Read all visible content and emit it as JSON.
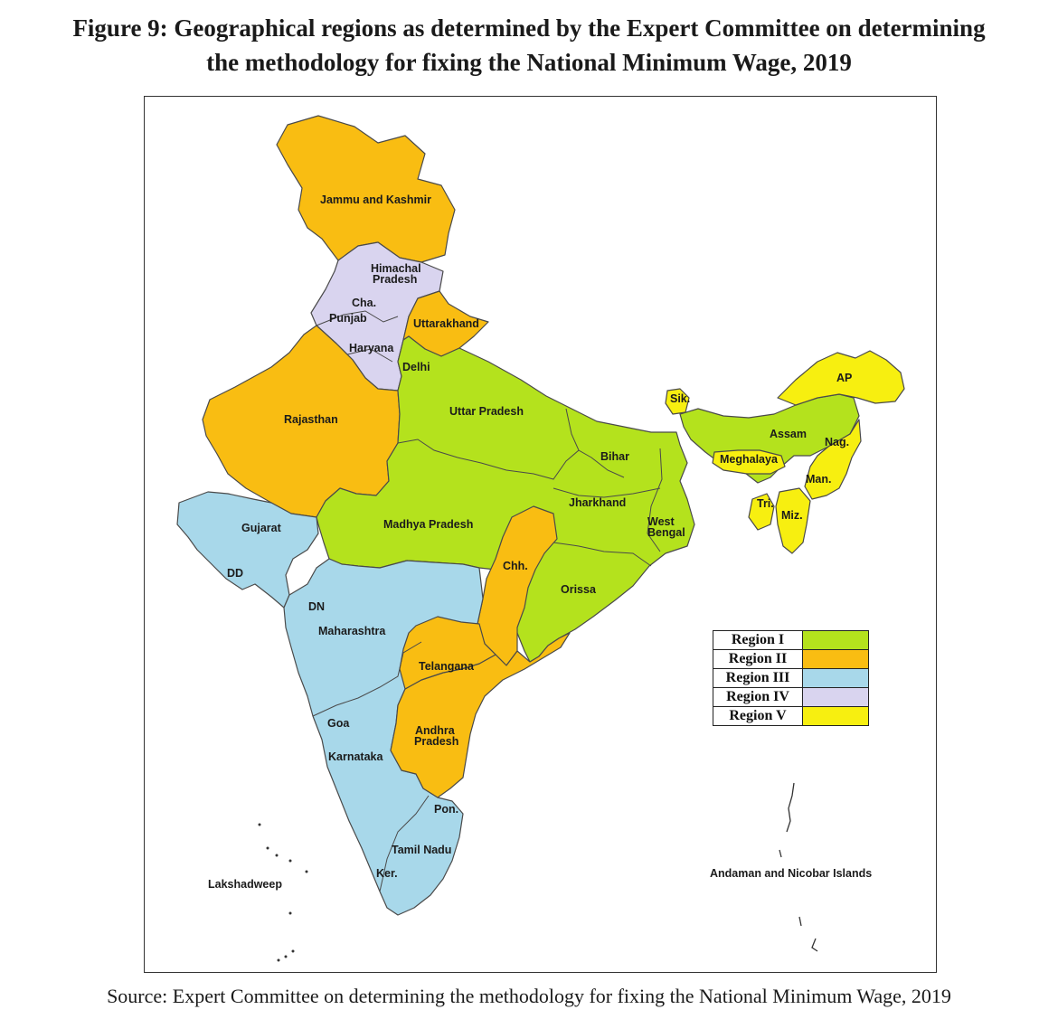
{
  "figure": {
    "title_line1": "Figure 9: Geographical regions as determined by the Expert Committee on determining",
    "title_line2": "the methodology for fixing the National Minimum Wage, 2019",
    "source": "Source: Expert Committee on determining the methodology for fixing the National Minimum Wage, 2019"
  },
  "colors": {
    "region_1": "#b4e21d",
    "region_2": "#f9bd12",
    "region_3": "#a8d8ea",
    "region_4": "#d9d4ef",
    "region_5": "#f7ef10",
    "border": "#4a4a4a"
  },
  "legend": [
    {
      "label": "Region I",
      "color": "#b4e21d"
    },
    {
      "label": "Region II",
      "color": "#f9bd12"
    },
    {
      "label": "Region III",
      "color": "#a8d8ea"
    },
    {
      "label": "Region IV",
      "color": "#d9d4ef"
    },
    {
      "label": "Region V",
      "color": "#f7ef10"
    }
  ],
  "states": {
    "jammu_kashmir": {
      "label": "Jammu and Kashmir",
      "region": "Region II"
    },
    "himachal": {
      "label_line1": "Himachal",
      "label_line2": "Pradesh",
      "region": "Region IV"
    },
    "chandigarh": {
      "label": "Cha.",
      "region": "Region IV"
    },
    "punjab": {
      "label": "Punjab",
      "region": "Region IV"
    },
    "uttarakhand": {
      "label": "Uttarakhand",
      "region": "Region II"
    },
    "haryana": {
      "label": "Haryana",
      "region": "Region IV"
    },
    "delhi": {
      "label": "Delhi",
      "region": "Region IV"
    },
    "rajasthan": {
      "label": "Rajasthan",
      "region": "Region II"
    },
    "uttar_pradesh": {
      "label": "Uttar Pradesh",
      "region": "Region I"
    },
    "bihar": {
      "label": "Bihar",
      "region": "Region I"
    },
    "sikkim": {
      "label": "Sik.",
      "region": "Region V"
    },
    "arunachal": {
      "label": "AP",
      "region": "Region V"
    },
    "assam": {
      "label": "Assam",
      "region": "Region I"
    },
    "nagaland": {
      "label": "Nag.",
      "region": "Region V"
    },
    "meghalaya": {
      "label": "Meghalaya",
      "region": "Region V"
    },
    "manipur": {
      "label": "Man.",
      "region": "Region V"
    },
    "tripura": {
      "label": "Tri.",
      "region": "Region V"
    },
    "mizoram": {
      "label": "Miz.",
      "region": "Region V"
    },
    "jharkhand": {
      "label": "Jharkhand",
      "region": "Region I"
    },
    "west_bengal": {
      "label_line1": "West",
      "label_line2": "Bengal",
      "region": "Region I"
    },
    "gujarat": {
      "label": "Gujarat",
      "region": "Region III"
    },
    "madhya_pradesh": {
      "label": "Madhya Pradesh",
      "region": "Region I"
    },
    "chhattisgarh": {
      "label": "Chh.",
      "region": "Region II"
    },
    "orissa": {
      "label": "Orissa",
      "region": "Region I"
    },
    "daman_diu": {
      "label": "DD",
      "region": "Region III"
    },
    "dadra_nagar": {
      "label": "DN",
      "region": "Region III"
    },
    "maharashtra": {
      "label": "Maharashtra",
      "region": "Region III"
    },
    "telangana": {
      "label": "Telangana",
      "region": "Region II"
    },
    "goa": {
      "label": "Goa",
      "region": "Region III"
    },
    "andhra_pradesh": {
      "label_line1": "Andhra",
      "label_line2": "Pradesh",
      "region": "Region II"
    },
    "karnataka": {
      "label": "Karnataka",
      "region": "Region III"
    },
    "puducherry": {
      "label": "Pon.",
      "region": "Region III"
    },
    "tamil_nadu": {
      "label": "Tamil Nadu",
      "region": "Region III"
    },
    "kerala": {
      "label": "Ker.",
      "region": "Region III"
    },
    "lakshadweep": {
      "label": "Lakshadweep"
    },
    "andaman_nicobar": {
      "label": "Andaman and Nicobar Islands"
    }
  }
}
